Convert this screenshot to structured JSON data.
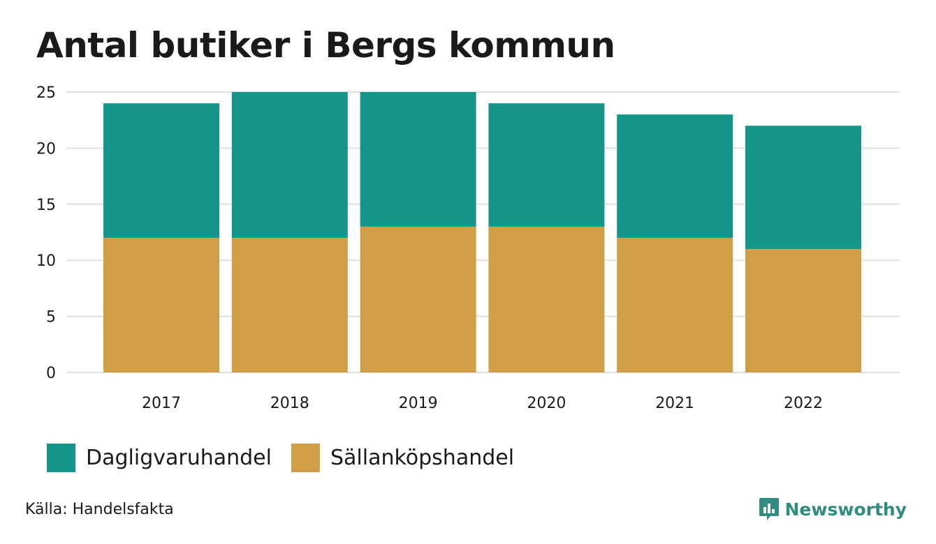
{
  "title": "Antal butiker i Bergs kommun",
  "source": "Källa: Handelsfakta",
  "brand": {
    "name": "Newsworthy",
    "icon": "chart-speech-bubble-icon"
  },
  "colors": {
    "daglig": "#16968a",
    "sallan": "#d19e48",
    "brand": "#2f8c7f",
    "grid": "#e0e0e0"
  },
  "chart_data": {
    "type": "bar",
    "stacked": true,
    "title": "Antal butiker i Bergs kommun",
    "categories": [
      "2017",
      "2018",
      "2019",
      "2020",
      "2021",
      "2022"
    ],
    "series": [
      {
        "name": "Sällanköpshandel",
        "color": "#d19e48",
        "values": [
          12,
          12,
          13,
          13,
          12,
          11
        ]
      },
      {
        "name": "Dagligvaruhandel",
        "color": "#16968a",
        "values": [
          12,
          13,
          12,
          11,
          11,
          11
        ]
      }
    ],
    "ylim": [
      0,
      25
    ],
    "yticks": [
      0,
      5,
      10,
      15,
      20,
      25
    ],
    "grid": true,
    "legend_position": "bottom-left",
    "legend": [
      "Dagligvaruhandel",
      "Sällanköpshandel"
    ]
  }
}
